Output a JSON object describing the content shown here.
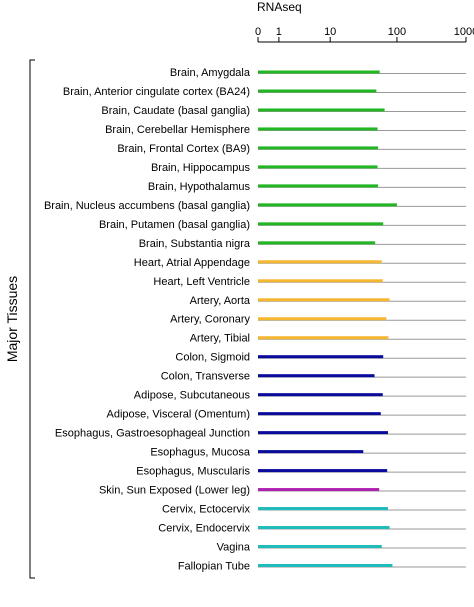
{
  "chart_data": {
    "type": "bar",
    "orientation": "horizontal",
    "xlabel": "RNAseq",
    "x_scale": "log1p",
    "xlim": [
      0,
      1000
    ],
    "x_ticks": [
      "0",
      "1",
      "10",
      "100",
      "1000"
    ],
    "group_label": "Major Tissues",
    "grid": false,
    "categories": [
      "Brain, Amygdala",
      "Brain, Anterior cingulate cortex (BA24)",
      "Brain, Caudate (basal ganglia)",
      "Brain, Cerebellar Hemisphere",
      "Brain, Frontal Cortex (BA9)",
      "Brain, Hippocampus",
      "Brain, Hypothalamus",
      "Brain, Nucleus accumbens (basal ganglia)",
      "Brain, Putamen (basal ganglia)",
      "Brain, Substantia nigra",
      "Heart, Atrial Appendage",
      "Heart, Left Ventricle",
      "Artery, Aorta",
      "Artery, Coronary",
      "Artery, Tibial",
      "Colon, Sigmoid",
      "Colon, Transverse",
      "Adipose, Subcutaneous",
      "Adipose, Visceral (Omentum)",
      "Esophagus, Gastroesophageal Junction",
      "Esophagus, Mucosa",
      "Esophagus, Muscularis",
      "Skin, Sun Exposed (Lower leg)",
      "Cervix, Ectocervix",
      "Cervix, Endocervix",
      "Vagina",
      "Fallopian Tube"
    ],
    "values": [
      56,
      50,
      66,
      52,
      53,
      52,
      53,
      100,
      63,
      48,
      60,
      62,
      78,
      70,
      75,
      63,
      47,
      62,
      58,
      74,
      32,
      72,
      55,
      74,
      78,
      60,
      86
    ],
    "colors": [
      "#22b722",
      "#22b722",
      "#22b722",
      "#22b722",
      "#22b722",
      "#22b722",
      "#22b722",
      "#22b722",
      "#22b722",
      "#22b722",
      "#f5b730",
      "#f5b730",
      "#f5b730",
      "#f5b730",
      "#f5b730",
      "#0a0a9c",
      "#0a0a9c",
      "#0a0a9c",
      "#0a0a9c",
      "#0a0a9c",
      "#0a0a9c",
      "#0a0a9c",
      "#b020b0",
      "#20bcbc",
      "#20bcbc",
      "#20bcbc",
      "#20bcbc"
    ],
    "row_line_color": "#999999"
  }
}
